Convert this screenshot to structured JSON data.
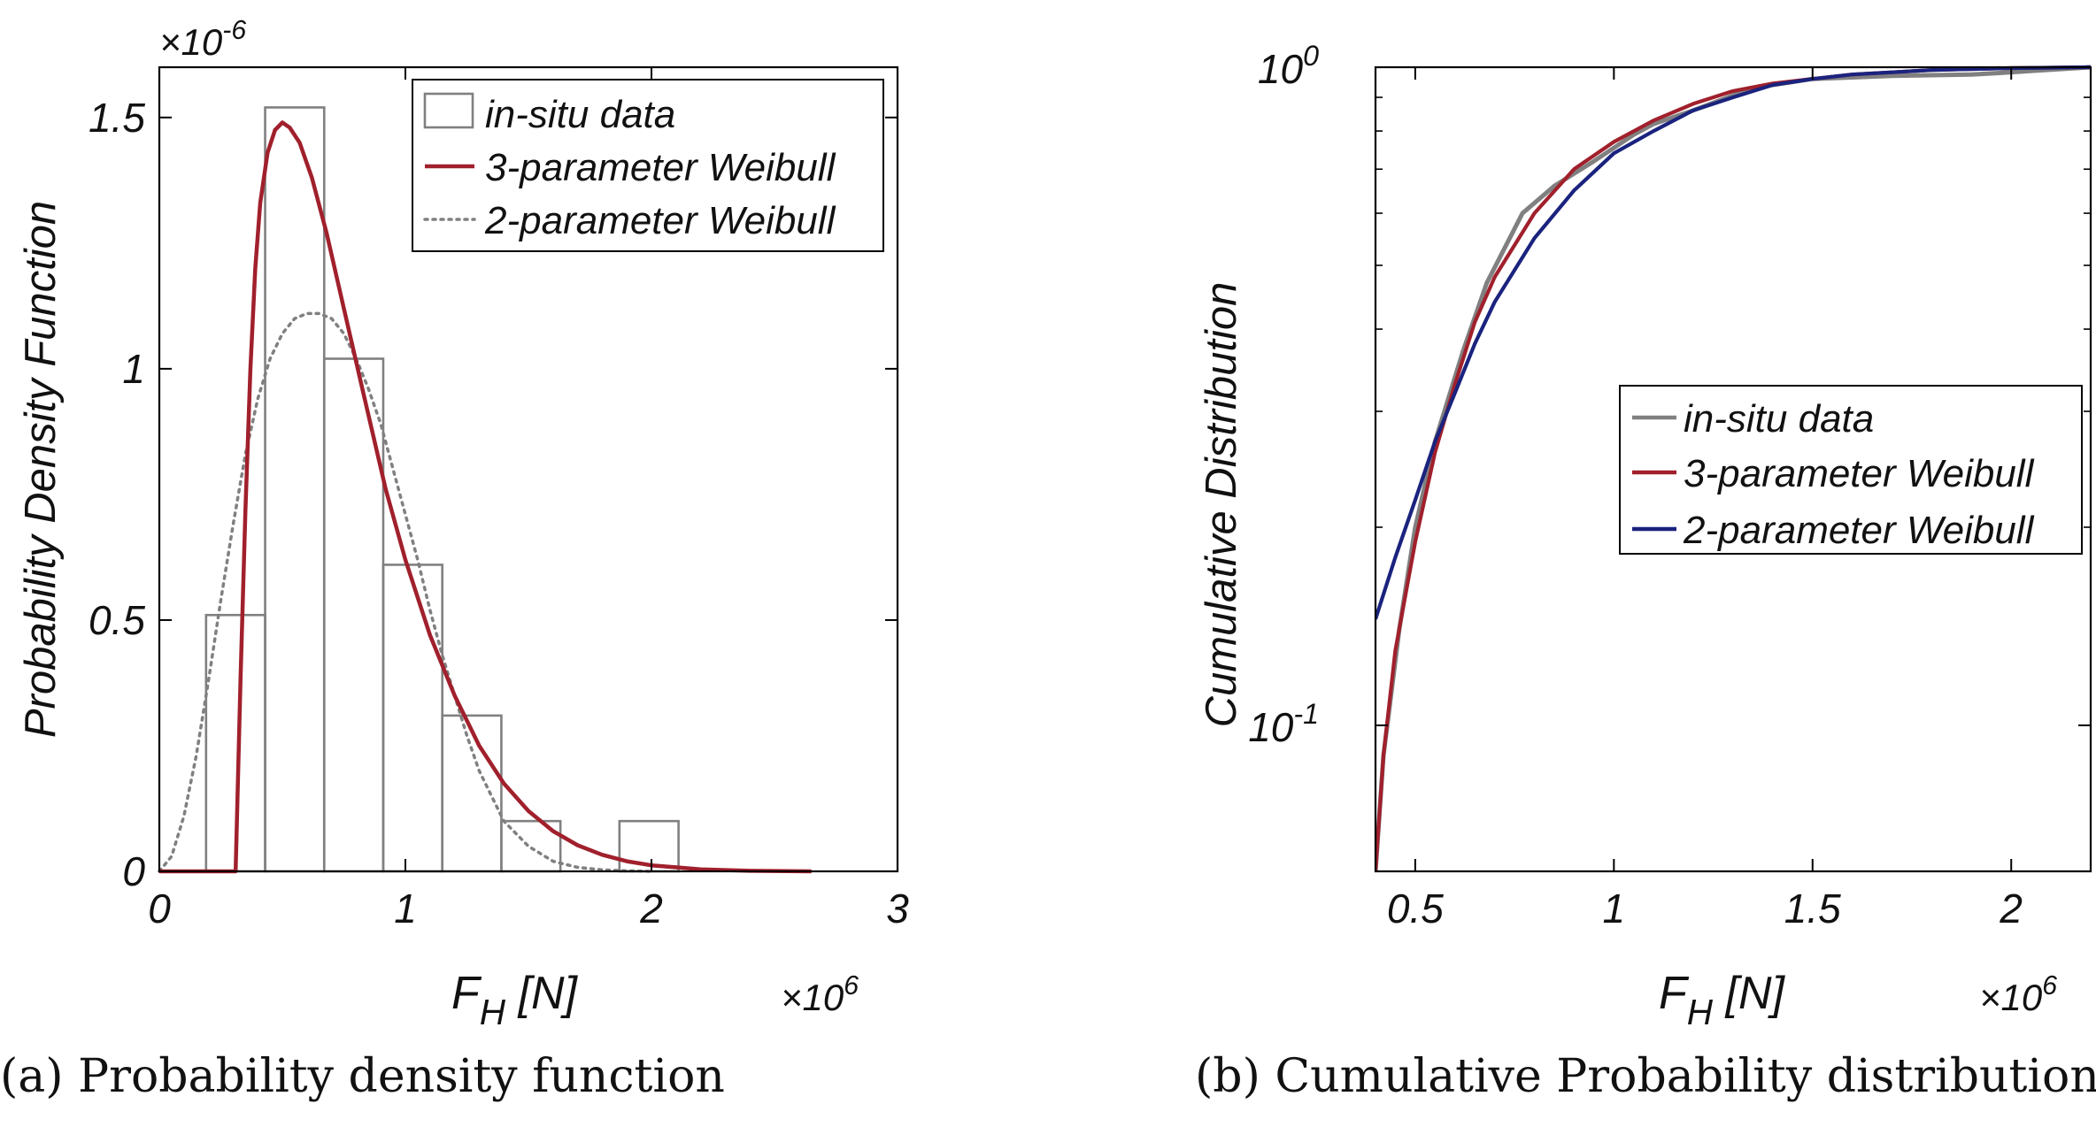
{
  "chart_data": [
    {
      "type": "histogram+line",
      "panel": "a",
      "caption": "(a) Probability density function",
      "xlabel_main": "F",
      "xlabel_sub": "H",
      "xlabel_unit": " [N]",
      "ylabel": "Probability Density Function",
      "x_multiplier_base": "×10",
      "x_multiplier_exp": "6",
      "y_multiplier_base": "×10",
      "y_multiplier_exp": "-6",
      "xlim": [
        0,
        3
      ],
      "ylim": [
        0,
        1.6
      ],
      "xticks": [
        0,
        1,
        2,
        3
      ],
      "xtick_labels": [
        "0",
        "1",
        "2",
        "3"
      ],
      "yticks": [
        0,
        0.5,
        1,
        1.5
      ],
      "ytick_labels": [
        "0",
        "0.5",
        "1",
        "1.5"
      ],
      "legend_position": "top-right",
      "histogram": {
        "name": "in-situ data",
        "color": "#808080",
        "bins": [
          {
            "x0": 0.19,
            "x1": 0.43,
            "density": 0.51
          },
          {
            "x0": 0.43,
            "x1": 0.67,
            "density": 1.52
          },
          {
            "x0": 0.67,
            "x1": 0.91,
            "density": 1.02
          },
          {
            "x0": 0.91,
            "x1": 1.15,
            "density": 0.61
          },
          {
            "x0": 1.15,
            "x1": 1.39,
            "density": 0.31
          },
          {
            "x0": 1.39,
            "x1": 1.63,
            "density": 0.1
          },
          {
            "x0": 1.63,
            "x1": 1.87,
            "density": 0.0
          },
          {
            "x0": 1.87,
            "x1": 2.11,
            "density": 0.1
          }
        ]
      },
      "series": [
        {
          "name": "3-parameter Weibull",
          "color": "#a0202c",
          "style": "solid",
          "x": [
            0,
            0.31,
            0.33,
            0.35,
            0.37,
            0.39,
            0.41,
            0.44,
            0.47,
            0.5,
            0.53,
            0.57,
            0.62,
            0.68,
            0.75,
            0.83,
            0.92,
            1.0,
            1.1,
            1.2,
            1.3,
            1.4,
            1.5,
            1.6,
            1.7,
            1.8,
            1.9,
            2.0,
            2.2,
            2.4,
            2.65
          ],
          "y": [
            0,
            0,
            0.38,
            0.72,
            1.0,
            1.2,
            1.33,
            1.43,
            1.475,
            1.49,
            1.48,
            1.45,
            1.38,
            1.27,
            1.12,
            0.95,
            0.76,
            0.62,
            0.47,
            0.35,
            0.25,
            0.175,
            0.12,
            0.08,
            0.052,
            0.033,
            0.02,
            0.012,
            0.004,
            0.001,
            0
          ]
        },
        {
          "name": "2-parameter Weibull",
          "color": "#808080",
          "style": "dotted",
          "x": [
            0,
            0.05,
            0.1,
            0.15,
            0.2,
            0.25,
            0.3,
            0.35,
            0.4,
            0.45,
            0.5,
            0.55,
            0.6,
            0.65,
            0.7,
            0.75,
            0.8,
            0.85,
            0.9,
            0.95,
            1.0,
            1.05,
            1.1,
            1.15,
            1.2,
            1.25,
            1.3,
            1.35,
            1.4,
            1.5,
            1.6,
            1.7,
            1.8,
            1.9,
            2.0
          ],
          "y": [
            0,
            0.03,
            0.11,
            0.23,
            0.38,
            0.54,
            0.69,
            0.83,
            0.94,
            1.02,
            1.07,
            1.1,
            1.11,
            1.11,
            1.1,
            1.07,
            1.02,
            0.96,
            0.89,
            0.8,
            0.71,
            0.62,
            0.52,
            0.43,
            0.35,
            0.27,
            0.2,
            0.15,
            0.1,
            0.05,
            0.02,
            0.008,
            0.003,
            0.001,
            0
          ]
        }
      ]
    },
    {
      "type": "line",
      "panel": "b",
      "caption": "(b) Cumulative Probability distribution",
      "xlabel_main": "F",
      "xlabel_sub": "H",
      "xlabel_unit": " [N]",
      "ylabel": "Cumulative Distribution",
      "x_multiplier_base": "×10",
      "x_multiplier_exp": "6",
      "xlim": [
        0.4,
        2.2
      ],
      "ylim": [
        0.06,
        1.0
      ],
      "yscale": "log",
      "xticks": [
        0.5,
        1,
        1.5,
        2
      ],
      "xtick_labels": [
        "0.5",
        "1",
        "1.5",
        "2"
      ],
      "yticks": [
        0.1,
        1
      ],
      "ytick_labels": [
        {
          "base": "10",
          "exp": "-1"
        },
        {
          "base": "10",
          "exp": "0"
        }
      ],
      "legend_position": "center-right",
      "series": [
        {
          "name": "in-situ data",
          "color": "#808080",
          "x": [
            0.4,
            0.42,
            0.46,
            0.5,
            0.55,
            0.62,
            0.68,
            0.77,
            0.85,
            0.95,
            1.05,
            1.1,
            1.2,
            1.35,
            1.5,
            1.7,
            1.9,
            1.97,
            2.2
          ],
          "y": [
            0.06,
            0.09,
            0.14,
            0.2,
            0.27,
            0.37,
            0.47,
            0.6,
            0.66,
            0.72,
            0.79,
            0.82,
            0.86,
            0.93,
            0.96,
            0.97,
            0.975,
            0.98,
            1.0
          ]
        },
        {
          "name": "3-parameter Weibull",
          "color": "#a0202c",
          "x": [
            0.4,
            0.42,
            0.45,
            0.5,
            0.55,
            0.6,
            0.65,
            0.7,
            0.8,
            0.9,
            1.0,
            1.1,
            1.2,
            1.3,
            1.4,
            1.5,
            1.6,
            1.8,
            2.0,
            2.2
          ],
          "y": [
            0.06,
            0.09,
            0.13,
            0.19,
            0.26,
            0.33,
            0.41,
            0.48,
            0.6,
            0.7,
            0.77,
            0.83,
            0.88,
            0.92,
            0.945,
            0.96,
            0.975,
            0.99,
            0.997,
            1.0
          ]
        },
        {
          "name": "2-parameter Weibull",
          "color": "#1a237e",
          "x": [
            0.4,
            0.45,
            0.5,
            0.55,
            0.6,
            0.65,
            0.7,
            0.8,
            0.9,
            1.0,
            1.1,
            1.2,
            1.3,
            1.4,
            1.5,
            1.6,
            1.8,
            2.0,
            2.2
          ],
          "y": [
            0.145,
            0.18,
            0.22,
            0.27,
            0.32,
            0.38,
            0.44,
            0.55,
            0.65,
            0.74,
            0.8,
            0.86,
            0.9,
            0.94,
            0.96,
            0.975,
            0.99,
            0.997,
            1.0
          ]
        }
      ]
    }
  ]
}
